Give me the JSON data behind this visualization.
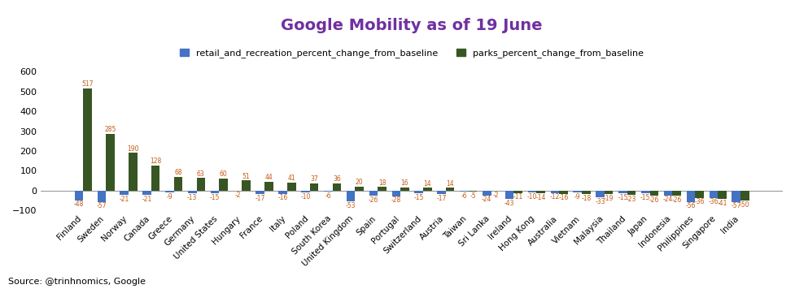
{
  "title": "Google Mobility as of 19 June",
  "title_color": "#7030A0",
  "source_text": "Source: @trinhnomics, Google",
  "legend_retail": "retail_and_recreation_percent_change_from_baseline",
  "legend_parks": "parks_percent_change_from_baseline",
  "retail_color": "#4472C4",
  "parks_color": "#375623",
  "label_color": "#C55A11",
  "categories": [
    "Finland",
    "Sweden",
    "Norway",
    "Canada",
    "Greece",
    "Germany",
    "United States",
    "Hungary",
    "France",
    "Italy",
    "Poland",
    "South Korea",
    "United Kingdom",
    "Spain",
    "Portugal",
    "Switzerland",
    "Austria",
    "Taiwan",
    "Sri Lanka",
    "Ireland",
    "Hong Kong",
    "Australia",
    "Vietnam",
    "Malaysia",
    "Thailand",
    "Japan",
    "Indonesia",
    "Philippines",
    "Singapore",
    "India"
  ],
  "retail": [
    -48,
    -57,
    -21,
    -21,
    -9,
    -13,
    -15,
    -2,
    -17,
    -16,
    -10,
    -6,
    -53,
    -26,
    -28,
    -15,
    -17,
    -6,
    -24,
    -43,
    -10,
    -12,
    -9,
    -33,
    -15,
    -15,
    -24,
    -56,
    -36,
    -57
  ],
  "parks": [
    517,
    285,
    190,
    128,
    68,
    63,
    60,
    51,
    44,
    41,
    37,
    36,
    20,
    18,
    16,
    14,
    14,
    -5,
    -2,
    -11,
    -14,
    -16,
    -18,
    -19,
    -23,
    -26,
    -26,
    -36,
    -41,
    -50
  ],
  "ylim": [
    -100,
    650
  ],
  "yticks": [
    -100,
    0,
    100,
    200,
    300,
    400,
    500,
    600
  ],
  "bar_width": 0.38
}
